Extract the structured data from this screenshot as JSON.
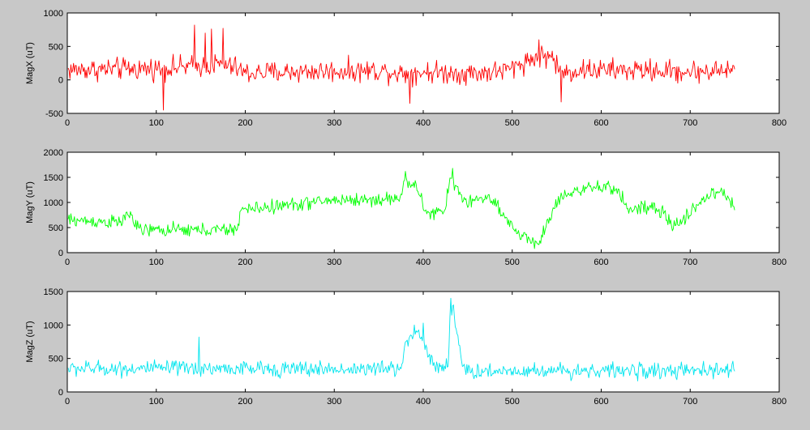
{
  "figure": {
    "background": "#c8c8c8",
    "axes_background": "#ffffff"
  },
  "chart_data": [
    {
      "type": "line",
      "title": "",
      "xlabel": "",
      "ylabel": "MagX (uT)",
      "xlim": [
        0,
        800
      ],
      "ylim": [
        -500,
        1000
      ],
      "xticks": [
        "0",
        "100",
        "200",
        "300",
        "400",
        "500",
        "600",
        "700",
        "800"
      ],
      "yticks": [
        "-500",
        "0",
        "500",
        "1000"
      ],
      "grid": false,
      "color": "#ff0000",
      "keypoints": [
        [
          0,
          150
        ],
        [
          50,
          160
        ],
        [
          100,
          170
        ],
        [
          140,
          200
        ],
        [
          170,
          230
        ],
        [
          190,
          180
        ],
        [
          200,
          100
        ],
        [
          250,
          120
        ],
        [
          300,
          130
        ],
        [
          350,
          140
        ],
        [
          380,
          100
        ],
        [
          400,
          120
        ],
        [
          450,
          100
        ],
        [
          480,
          120
        ],
        [
          500,
          170
        ],
        [
          510,
          250
        ],
        [
          530,
          350
        ],
        [
          545,
          350
        ],
        [
          555,
          100
        ],
        [
          580,
          150
        ],
        [
          650,
          140
        ],
        [
          700,
          120
        ],
        [
          750,
          150
        ]
      ],
      "noise": 120,
      "extremes": [
        [
          108,
          -450
        ],
        [
          143,
          820
        ],
        [
          155,
          700
        ],
        [
          162,
          760
        ],
        [
          175,
          770
        ],
        [
          385,
          -350
        ],
        [
          555,
          -330
        ],
        [
          530,
          600
        ]
      ]
    },
    {
      "type": "line",
      "title": "",
      "xlabel": "",
      "ylabel": "MagY (uT)",
      "xlim": [
        0,
        800
      ],
      "ylim": [
        0,
        2000
      ],
      "xticks": [
        "0",
        "100",
        "200",
        "300",
        "400",
        "500",
        "600",
        "700",
        "800"
      ],
      "yticks": [
        "0",
        "500",
        "1000",
        "1500",
        "2000"
      ],
      "grid": false,
      "color": "#00ff00",
      "keypoints": [
        [
          0,
          650
        ],
        [
          60,
          600
        ],
        [
          70,
          800
        ],
        [
          80,
          450
        ],
        [
          100,
          450
        ],
        [
          150,
          450
        ],
        [
          190,
          450
        ],
        [
          195,
          850
        ],
        [
          250,
          950
        ],
        [
          300,
          1050
        ],
        [
          350,
          1050
        ],
        [
          375,
          1100
        ],
        [
          380,
          1500
        ],
        [
          395,
          1200
        ],
        [
          405,
          750
        ],
        [
          425,
          850
        ],
        [
          430,
          1500
        ],
        [
          440,
          1200
        ],
        [
          450,
          1000
        ],
        [
          470,
          1100
        ],
        [
          480,
          1000
        ],
        [
          490,
          700
        ],
        [
          500,
          500
        ],
        [
          520,
          250
        ],
        [
          530,
          200
        ],
        [
          540,
          600
        ],
        [
          550,
          1000
        ],
        [
          560,
          1200
        ],
        [
          600,
          1300
        ],
        [
          620,
          1250
        ],
        [
          630,
          850
        ],
        [
          650,
          900
        ],
        [
          670,
          800
        ],
        [
          680,
          500
        ],
        [
          700,
          800
        ],
        [
          720,
          1150
        ],
        [
          735,
          1200
        ],
        [
          750,
          950
        ]
      ],
      "noise": 100,
      "extremes": [
        [
          380,
          1620
        ],
        [
          433,
          1680
        ],
        [
          525,
          80
        ]
      ]
    },
    {
      "type": "line",
      "title": "",
      "xlabel": "",
      "ylabel": "MagZ (uT)",
      "xlim": [
        0,
        800
      ],
      "ylim": [
        0,
        1500
      ],
      "xticks": [
        "0",
        "100",
        "200",
        "300",
        "400",
        "500",
        "600",
        "700",
        "800"
      ],
      "yticks": [
        "0",
        "500",
        "1000",
        "1500"
      ],
      "grid": false,
      "color": "#00e5ee",
      "keypoints": [
        [
          0,
          350
        ],
        [
          150,
          350
        ],
        [
          300,
          340
        ],
        [
          375,
          350
        ],
        [
          380,
          750
        ],
        [
          395,
          900
        ],
        [
          405,
          600
        ],
        [
          415,
          350
        ],
        [
          428,
          400
        ],
        [
          430,
          1100
        ],
        [
          433,
          1300
        ],
        [
          438,
          900
        ],
        [
          445,
          300
        ],
        [
          500,
          320
        ],
        [
          600,
          320
        ],
        [
          700,
          310
        ],
        [
          750,
          330
        ]
      ],
      "noise": 85,
      "extremes": [
        [
          148,
          820
        ],
        [
          390,
          1000
        ],
        [
          400,
          1030
        ],
        [
          431,
          1400
        ],
        [
          434,
          1300
        ]
      ]
    }
  ]
}
